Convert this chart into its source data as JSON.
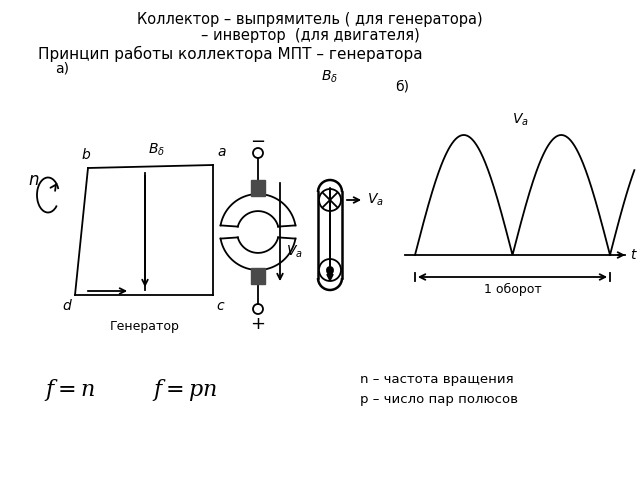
{
  "title_top": "Коллектор – выпрямитель ( для генератора)\n– инвертор  (для двигателя)",
  "title_sub": "Принцип работы коллектора МПТ – генератора",
  "label_b": "b",
  "label_a": "a",
  "label_d": "d",
  "label_c": "c",
  "label_n": "n",
  "label_generator": "Генератор",
  "label_B0": "$B_\\delta$",
  "label_Va": "$V_a$",
  "label_a_sec": "a)",
  "label_b_sec": "б)",
  "label_1_turn": "1 оборот",
  "label_t": "t",
  "formula1": "$f = n$",
  "formula2": "$f = pn$",
  "note1": "n – частота вращения",
  "note2": "p – число пар полюсов",
  "bg_color": "#ffffff",
  "line_color": "#000000",
  "gray_color": "#4a4a4a"
}
